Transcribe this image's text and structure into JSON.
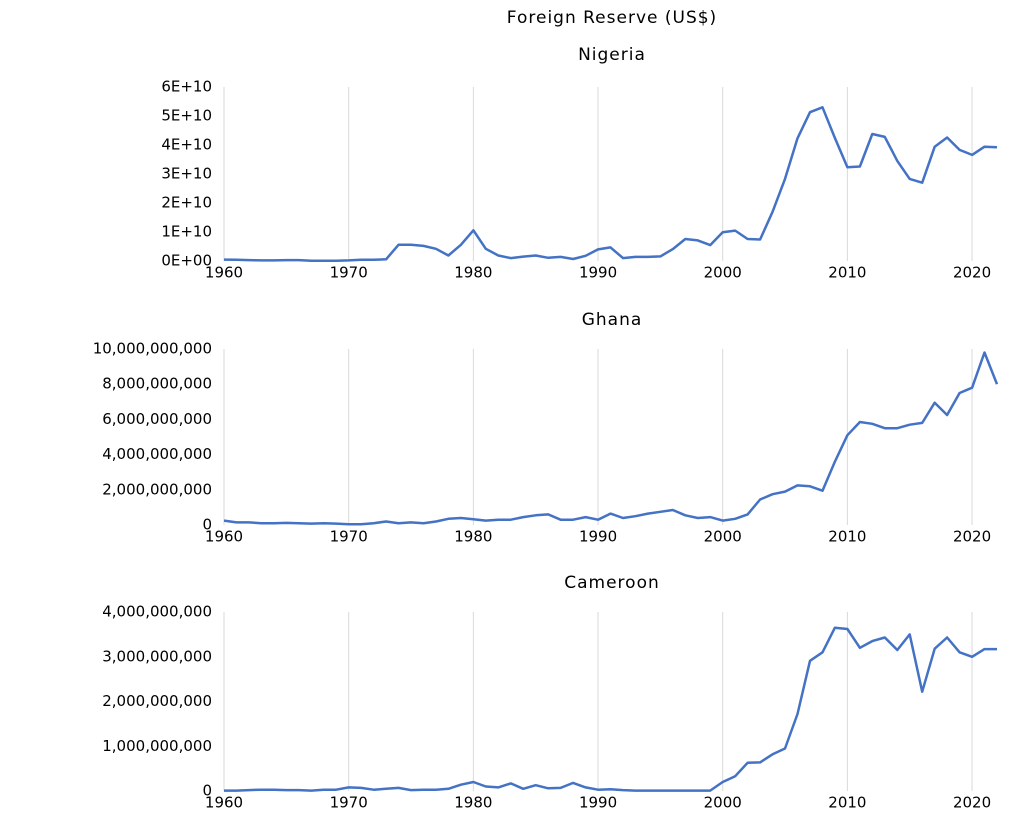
{
  "title": "Foreign Reserve (US$)",
  "chart_data": [
    {
      "type": "line",
      "title": "Nigeria",
      "x": [
        1960,
        1961,
        1962,
        1963,
        1964,
        1965,
        1966,
        1967,
        1968,
        1969,
        1970,
        1971,
        1972,
        1973,
        1974,
        1975,
        1976,
        1977,
        1978,
        1979,
        1980,
        1981,
        1982,
        1983,
        1984,
        1985,
        1986,
        1987,
        1988,
        1989,
        1990,
        1991,
        1992,
        1993,
        1994,
        1995,
        1996,
        1997,
        1998,
        1999,
        2000,
        2001,
        2002,
        2003,
        2004,
        2005,
        2006,
        2007,
        2008,
        2009,
        2010,
        2011,
        2012,
        2013,
        2014,
        2015,
        2016,
        2017,
        2018,
        2019,
        2020,
        2021,
        2022
      ],
      "values": [
        500000000.0,
        400000000.0,
        300000000.0,
        200000000.0,
        200000000.0,
        300000000.0,
        300000000.0,
        100000000.0,
        100000000.0,
        100000000.0,
        200000000.0,
        400000000.0,
        400000000.0,
        600000000.0,
        5600000000.0,
        5600000000.0,
        5200000000.0,
        4200000000.0,
        1900000000.0,
        5600000000.0,
        10600000000.0,
        4200000000.0,
        1900000000.0,
        1000000000.0,
        1500000000.0,
        1900000000.0,
        1100000000.0,
        1400000000.0,
        700000000.0,
        1800000000.0,
        4000000000.0,
        4700000000.0,
        1000000000.0,
        1400000000.0,
        1400000000.0,
        1600000000.0,
        4100000000.0,
        7600000000.0,
        7100000000.0,
        5500000000.0,
        9900000000.0,
        10500000000.0,
        7600000000.0,
        7400000000.0,
        17000000000.0,
        28300000000.0,
        42300000000.0,
        51300000000.0,
        53000000000.0,
        42400000000.0,
        32300000000.0,
        32600000000.0,
        43800000000.0,
        42800000000.0,
        34500000000.0,
        28300000000.0,
        27000000000.0,
        39400000000.0,
        42600000000.0,
        38300000000.0,
        36600000000.0,
        39400000000.0,
        39200000000.0
      ],
      "color": "#4472c4",
      "xlim": [
        1960,
        2022
      ],
      "xticks": [
        1960,
        1970,
        1980,
        1990,
        2000,
        2010,
        2020
      ],
      "ylim": [
        0,
        60000000000.0
      ],
      "yticks": [
        {
          "value": 0,
          "label": "0E+00"
        },
        {
          "value": 10000000000.0,
          "label": "1E+10"
        },
        {
          "value": 20000000000.0,
          "label": "2E+10"
        },
        {
          "value": 30000000000.0,
          "label": "3E+10"
        },
        {
          "value": 40000000000.0,
          "label": "4E+10"
        },
        {
          "value": 50000000000.0,
          "label": "5E+10"
        },
        {
          "value": 60000000000.0,
          "label": "6E+10"
        }
      ],
      "grid": true
    },
    {
      "type": "line",
      "title": "Ghana",
      "x": [
        1960,
        1961,
        1962,
        1963,
        1964,
        1965,
        1966,
        1967,
        1968,
        1969,
        1970,
        1971,
        1972,
        1973,
        1974,
        1975,
        1976,
        1977,
        1978,
        1979,
        1980,
        1981,
        1982,
        1983,
        1984,
        1985,
        1986,
        1987,
        1988,
        1989,
        1990,
        1991,
        1992,
        1993,
        1994,
        1995,
        1996,
        1997,
        1998,
        1999,
        2000,
        2001,
        2002,
        2003,
        2004,
        2005,
        2006,
        2007,
        2008,
        2009,
        2010,
        2011,
        2012,
        2013,
        2014,
        2015,
        2016,
        2017,
        2018,
        2019,
        2020,
        2021,
        2022
      ],
      "values": [
        250000000.0,
        150000000.0,
        150000000.0,
        100000000.0,
        100000000.0,
        120000000.0,
        100000000.0,
        80000000.0,
        100000000.0,
        80000000.0,
        40000000.0,
        40000000.0,
        100000000.0,
        200000000.0,
        100000000.0,
        150000000.0,
        100000000.0,
        200000000.0,
        350000000.0,
        400000000.0,
        330000000.0,
        250000000.0,
        300000000.0,
        300000000.0,
        450000000.0,
        550000000.0,
        600000000.0,
        300000000.0,
        300000000.0,
        450000000.0,
        300000000.0,
        650000000.0,
        400000000.0,
        500000000.0,
        650000000.0,
        750000000.0,
        850000000.0,
        550000000.0,
        400000000.0,
        450000000.0,
        250000000.0,
        350000000.0,
        600000000.0,
        1450000000.0,
        1750000000.0,
        1900000000.0,
        2250000000.0,
        2200000000.0,
        1950000000.0,
        3600000000.0,
        5100000000.0,
        5850000000.0,
        5750000000.0,
        5500000000.0,
        5500000000.0,
        5700000000.0,
        5800000000.0,
        6950000000.0,
        6250000000.0,
        7500000000.0,
        7800000000.0,
        9800000000.0,
        8000000000.0
      ],
      "color": "#4472c4",
      "xlim": [
        1960,
        2022
      ],
      "xticks": [
        1960,
        1970,
        1980,
        1990,
        2000,
        2010,
        2020
      ],
      "ylim": [
        0,
        10000000000.0
      ],
      "yticks": [
        0,
        {
          "value": 2000000000.0,
          "label": "2,000,000,000"
        },
        {
          "value": 4000000000.0,
          "label": "4,000,000,000"
        },
        {
          "value": 6000000000.0,
          "label": "6,000,000,000"
        },
        {
          "value": 8000000000.0,
          "label": "8,000,000,000"
        },
        {
          "value": 10000000000.0,
          "label": "10,000,000,000"
        }
      ],
      "grid": true
    },
    {
      "type": "line",
      "title": "Cameroon",
      "x": [
        1960,
        1961,
        1962,
        1963,
        1964,
        1965,
        1966,
        1967,
        1968,
        1969,
        1970,
        1971,
        1972,
        1973,
        1974,
        1975,
        1976,
        1977,
        1978,
        1979,
        1980,
        1981,
        1982,
        1983,
        1984,
        1985,
        1986,
        1987,
        1988,
        1989,
        1990,
        1991,
        1992,
        1993,
        1994,
        1995,
        1996,
        1997,
        1998,
        1999,
        2000,
        2001,
        2002,
        2003,
        2004,
        2005,
        2006,
        2007,
        2008,
        2009,
        2010,
        2011,
        2012,
        2013,
        2014,
        2015,
        2016,
        2017,
        2018,
        2019,
        2020,
        2021,
        2022
      ],
      "values": [
        10000000.0,
        10000000.0,
        20000000.0,
        30000000.0,
        30000000.0,
        20000000.0,
        20000000.0,
        10000000.0,
        30000000.0,
        30000000.0,
        80000000.0,
        70000000.0,
        30000000.0,
        50000000.0,
        70000000.0,
        20000000.0,
        30000000.0,
        30000000.0,
        50000000.0,
        140000000.0,
        200000000.0,
        100000000.0,
        80000000.0,
        170000000.0,
        50000000.0,
        130000000.0,
        60000000.0,
        70000000.0,
        180000000.0,
        80000000.0,
        30000000.0,
        40000000.0,
        20000000.0,
        10000000.0,
        10000000.0,
        10000000.0,
        10000000.0,
        10000000.0,
        10000000.0,
        10000000.0,
        200000000.0,
        330000000.0,
        630000000.0,
        640000000.0,
        820000000.0,
        950000000.0,
        1720000000.0,
        2910000000.0,
        3100000000.0,
        3650000000.0,
        3620000000.0,
        3200000000.0,
        3350000000.0,
        3430000000.0,
        3150000000.0,
        3500000000.0,
        2220000000.0,
        3180000000.0,
        3430000000.0,
        3100000000.0,
        3000000000.0,
        3170000000.0,
        3170000000.0
      ],
      "color": "#4472c4",
      "xlim": [
        1960,
        2022
      ],
      "xticks": [
        1960,
        1970,
        1980,
        1990,
        2000,
        2010,
        2020
      ],
      "ylim": [
        0,
        4000000000.0
      ],
      "yticks": [
        0,
        {
          "value": 1000000000.0,
          "label": "1,000,000,000"
        },
        {
          "value": 2000000000.0,
          "label": "2,000,000,000"
        },
        {
          "value": 3000000000.0,
          "label": "3,000,000,000"
        },
        {
          "value": 4000000000.0,
          "label": "4,000,000,000"
        }
      ],
      "grid": true
    }
  ]
}
